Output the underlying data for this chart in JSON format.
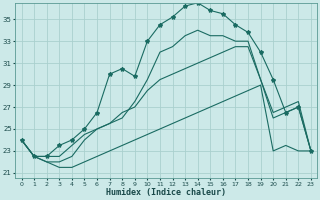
{
  "bg_color": "#cce9e8",
  "grid_color": "#aad0ce",
  "line_color": "#1a6b62",
  "xlabel": "Humidex (Indice chaleur)",
  "xlim": [
    -0.5,
    23.5
  ],
  "ylim": [
    20.5,
    36.5
  ],
  "yticks": [
    21,
    23,
    25,
    27,
    29,
    31,
    33,
    35
  ],
  "xticks": [
    0,
    1,
    2,
    3,
    4,
    5,
    6,
    7,
    8,
    9,
    10,
    11,
    12,
    13,
    14,
    15,
    16,
    17,
    18,
    19,
    20,
    21,
    22,
    23
  ],
  "series1_x": [
    0,
    1,
    2,
    3,
    4,
    5,
    6,
    7,
    8,
    9,
    10,
    11,
    12,
    13,
    14,
    15,
    16,
    17,
    18,
    19,
    20,
    21,
    22,
    23
  ],
  "series1_y": [
    24.0,
    22.5,
    22.0,
    21.5,
    21.5,
    22.0,
    22.5,
    23.0,
    23.5,
    24.0,
    24.5,
    25.0,
    25.5,
    26.0,
    26.5,
    27.0,
    27.5,
    28.0,
    28.5,
    29.0,
    23.0,
    23.5,
    23.0,
    23.0
  ],
  "series2_x": [
    0,
    1,
    2,
    3,
    4,
    5,
    6,
    7,
    8,
    9,
    10,
    11,
    12,
    13,
    14,
    15,
    16,
    17,
    18,
    19,
    20,
    21,
    22,
    23
  ],
  "series2_y": [
    24.0,
    22.5,
    22.0,
    22.0,
    22.5,
    24.0,
    25.0,
    25.5,
    26.5,
    27.0,
    28.5,
    29.5,
    30.0,
    30.5,
    31.0,
    31.5,
    32.0,
    32.5,
    32.5,
    29.5,
    26.0,
    26.5,
    27.0,
    23.0
  ],
  "series3_x": [
    0,
    1,
    2,
    3,
    4,
    5,
    6,
    7,
    8,
    9,
    10,
    11,
    12,
    13,
    14,
    15,
    16,
    17,
    18,
    19,
    20,
    21,
    22,
    23
  ],
  "series3_y": [
    24.0,
    22.5,
    22.5,
    23.5,
    24.0,
    25.0,
    26.5,
    30.0,
    30.5,
    29.8,
    33.0,
    34.5,
    35.2,
    36.2,
    36.5,
    35.8,
    35.5,
    34.5,
    33.8,
    32.0,
    29.5,
    26.5,
    27.0,
    23.0
  ],
  "series4_x": [
    0,
    1,
    2,
    3,
    4,
    5,
    6,
    7,
    8,
    9,
    10,
    11,
    12,
    13,
    14,
    15,
    16,
    17,
    18,
    19,
    20,
    21,
    22,
    23
  ],
  "series4_y": [
    24.0,
    22.5,
    22.5,
    22.5,
    23.5,
    24.5,
    25.0,
    25.5,
    26.0,
    27.5,
    29.5,
    32.0,
    32.5,
    33.5,
    34.0,
    33.5,
    33.5,
    33.0,
    33.0,
    29.5,
    26.5,
    27.0,
    27.5,
    23.0
  ]
}
